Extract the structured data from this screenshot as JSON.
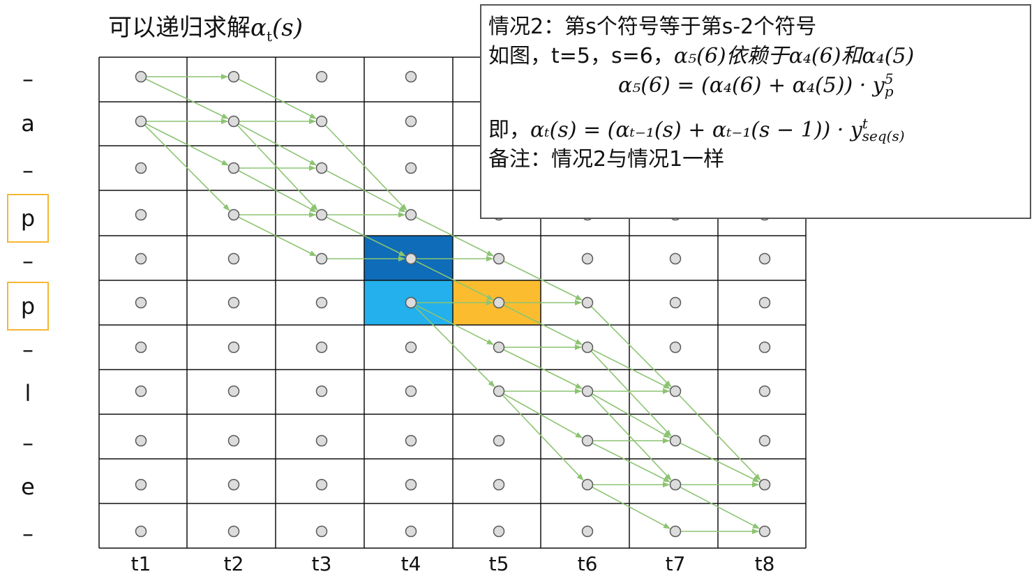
{
  "title": {
    "text": "可以递归求解",
    "math_base": "α",
    "math_sub": "t",
    "math_arg": "(s)"
  },
  "row_labels": [
    "–",
    "a",
    "–",
    "p",
    "–",
    "p",
    "–",
    "l",
    "–",
    "e",
    "–"
  ],
  "boxed_rows": [
    3,
    5
  ],
  "col_labels": [
    "t1",
    "t2",
    "t3",
    "t4",
    "t5",
    "t6",
    "t7",
    "t8"
  ],
  "highlights": [
    {
      "col": 3,
      "row": 4,
      "color": "#0e6cb8"
    },
    {
      "col": 3,
      "row": 5,
      "color": "#23b0ec"
    },
    {
      "col": 4,
      "row": 5,
      "color": "#fbbd2f"
    }
  ],
  "arrows": [
    [
      0,
      0,
      1,
      0
    ],
    [
      0,
      0,
      1,
      1
    ],
    [
      0,
      1,
      1,
      1
    ],
    [
      0,
      1,
      1,
      2
    ],
    [
      0,
      1,
      1,
      3
    ],
    [
      1,
      0,
      2,
      1
    ],
    [
      1,
      1,
      2,
      1
    ],
    [
      1,
      1,
      2,
      2
    ],
    [
      1,
      1,
      2,
      3
    ],
    [
      1,
      2,
      2,
      2
    ],
    [
      1,
      2,
      2,
      3
    ],
    [
      1,
      3,
      2,
      3
    ],
    [
      1,
      3,
      2,
      4
    ],
    [
      2,
      1,
      3,
      3
    ],
    [
      2,
      2,
      3,
      3
    ],
    [
      2,
      3,
      3,
      3
    ],
    [
      2,
      3,
      3,
      4
    ],
    [
      2,
      4,
      3,
      4
    ],
    [
      3,
      3,
      4,
      4
    ],
    [
      3,
      4,
      4,
      4
    ],
    [
      3,
      4,
      4,
      5
    ],
    [
      3,
      5,
      4,
      5
    ],
    [
      3,
      5,
      4,
      6
    ],
    [
      3,
      5,
      4,
      7
    ],
    [
      4,
      4,
      5,
      5
    ],
    [
      4,
      5,
      5,
      5
    ],
    [
      4,
      5,
      5,
      6
    ],
    [
      4,
      6,
      5,
      6
    ],
    [
      4,
      6,
      5,
      7
    ],
    [
      4,
      7,
      5,
      7
    ],
    [
      4,
      7,
      5,
      8
    ],
    [
      4,
      7,
      5,
      9
    ],
    [
      5,
      5,
      6,
      7
    ],
    [
      5,
      6,
      6,
      7
    ],
    [
      5,
      6,
      6,
      8
    ],
    [
      5,
      7,
      6,
      7
    ],
    [
      5,
      7,
      6,
      8
    ],
    [
      5,
      7,
      6,
      9
    ],
    [
      5,
      8,
      6,
      8
    ],
    [
      5,
      8,
      6,
      9
    ],
    [
      5,
      9,
      6,
      9
    ],
    [
      5,
      9,
      6,
      10
    ],
    [
      6,
      7,
      7,
      9
    ],
    [
      6,
      8,
      7,
      9
    ],
    [
      6,
      9,
      7,
      9
    ],
    [
      6,
      9,
      7,
      10
    ],
    [
      6,
      10,
      7,
      10
    ]
  ],
  "note": {
    "line1": "情况2：第s个符号等于第s-2个符号",
    "line2_text": "如图，t=5，s=6，",
    "line2_math": "α₅(6)依赖于α₄(6)和α₄(5)",
    "formula1": "α₅(6) = (α₄(6) + α₄(5)) · y",
    "formula1_sup": "5",
    "formula1_sub": "p",
    "line4_text": "即，",
    "formula2": "αₜ(s) = (αₜ₋₁(s) + αₜ₋₁(s − 1)) · y",
    "formula2_sup": "t",
    "formula2_sub": "seq(s)",
    "line5": "备注：情况2与情况1一样"
  },
  "colors": {
    "arrow": "#8cc472",
    "grid_line": "#111111",
    "node_fill": "#dcdcdc",
    "node_stroke": "#5a5a5a",
    "label_box": "#f5b731",
    "note_border": "#555555"
  }
}
